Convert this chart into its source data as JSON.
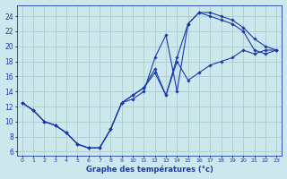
{
  "xlabel": "Graphe des températures (°c)",
  "bg_color": "#cce8ec",
  "grid_color": "#aacccc",
  "line_color": "#1a3aab",
  "xlim": [
    -0.5,
    23.5
  ],
  "ylim": [
    5.5,
    25.5
  ],
  "yticks": [
    6,
    8,
    10,
    12,
    14,
    16,
    18,
    20,
    22,
    24
  ],
  "xticks": [
    0,
    1,
    2,
    3,
    4,
    5,
    6,
    7,
    8,
    9,
    10,
    11,
    12,
    13,
    14,
    15,
    16,
    17,
    18,
    19,
    20,
    21,
    22,
    23
  ],
  "series": [
    {
      "x": [
        0,
        1,
        2,
        3,
        4,
        5,
        6,
        7,
        8,
        9,
        10,
        11,
        12,
        13,
        14,
        15,
        16,
        17,
        18,
        19,
        20,
        21,
        22,
        23
      ],
      "y": [
        12.5,
        11.5,
        10.0,
        9.5,
        8.5,
        7.0,
        6.5,
        6.5,
        9.0,
        12.5,
        13.0,
        14.0,
        18.5,
        21.5,
        14.0,
        23.0,
        24.5,
        24.5,
        24.0,
        23.5,
        22.5,
        21.0,
        20.0,
        19.5
      ]
    },
    {
      "x": [
        0,
        1,
        2,
        3,
        4,
        5,
        6,
        7,
        8,
        9,
        10,
        11,
        12,
        13,
        14,
        15,
        16,
        17,
        18,
        19,
        20,
        21,
        22,
        23
      ],
      "y": [
        12.5,
        11.5,
        10.0,
        9.5,
        8.5,
        7.0,
        6.5,
        6.5,
        9.0,
        12.5,
        13.5,
        14.5,
        17.0,
        13.5,
        18.5,
        23.0,
        24.5,
        24.0,
        23.5,
        23.0,
        22.0,
        19.5,
        19.0,
        19.5
      ]
    },
    {
      "x": [
        0,
        1,
        2,
        3,
        4,
        5,
        6,
        7,
        8,
        9,
        10,
        11,
        12,
        13,
        14,
        15,
        16,
        17,
        18,
        19,
        20,
        21,
        22,
        23
      ],
      "y": [
        12.5,
        11.5,
        10.0,
        9.5,
        8.5,
        7.0,
        6.5,
        6.5,
        9.0,
        12.5,
        13.5,
        14.5,
        16.5,
        13.5,
        18.0,
        15.5,
        16.5,
        17.5,
        18.0,
        18.5,
        19.5,
        19.0,
        19.5,
        19.5
      ]
    }
  ]
}
